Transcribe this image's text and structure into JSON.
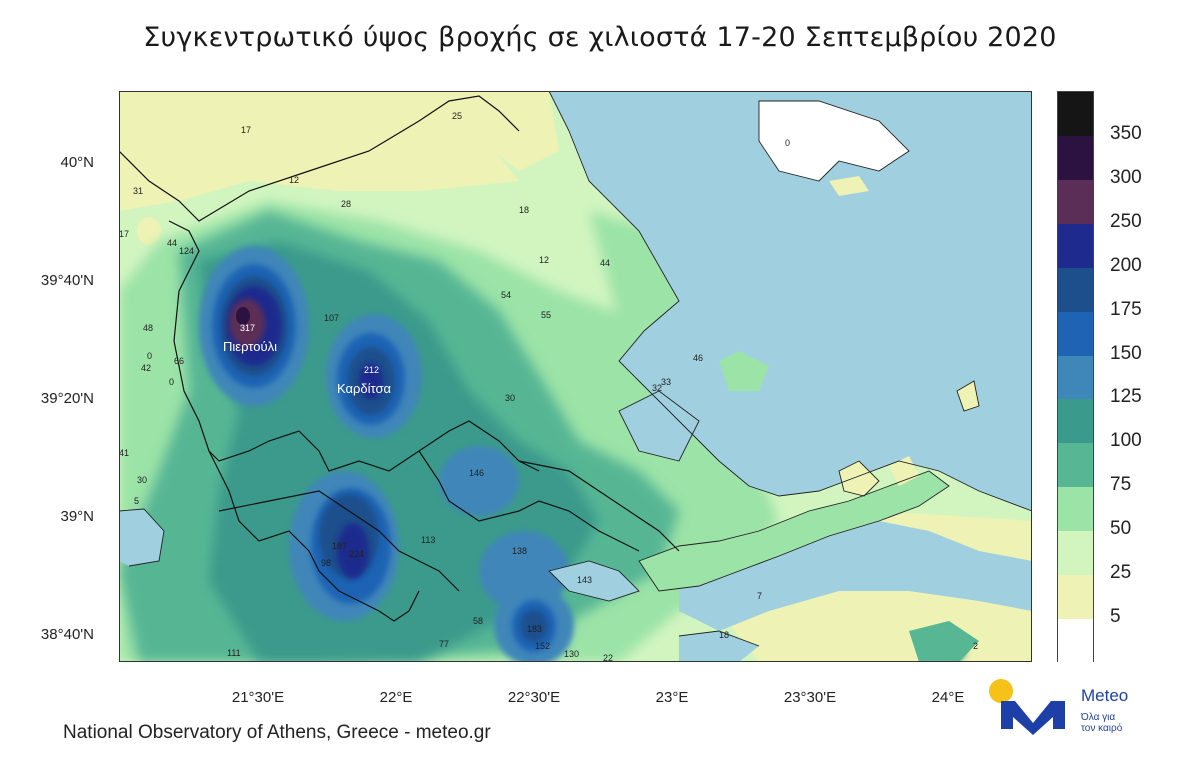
{
  "title": "Συγκεντρωτικό ύψος βροχής σε χιλιοστά 17-20 Σεπτεμβρίου 2020",
  "footer": "National Observatory of Athens, Greece - meteo.gr",
  "logo": {
    "name": "Meteo",
    "slogan_line1": "Όλα για",
    "slogan_line2": "τον καιρό"
  },
  "axes": {
    "y_ticks": [
      "40°N",
      "39°40'N",
      "39°20'N",
      "39°N",
      "38°40'N"
    ],
    "x_ticks": [
      "21°30'E",
      "22°E",
      "22°30'E",
      "23°E",
      "23°30'E",
      "24°E"
    ]
  },
  "colorbar": {
    "levels": [
      "350",
      "300",
      "250",
      "200",
      "175",
      "150",
      "125",
      "100",
      "75",
      "50",
      "25",
      "5"
    ],
    "colors": [
      "#151515",
      "#2b1240",
      "#5b2e57",
      "#1e2a8e",
      "#1c4f8c",
      "#1f64b4",
      "#3f86b9",
      "#3a9a8b",
      "#57b694",
      "#9be3a7",
      "#d2f5c0",
      "#eef2b4",
      "#ffffff"
    ]
  },
  "towns": [
    {
      "name": "Πιερτούλι",
      "value": "317"
    },
    {
      "name": "Καρδίτσα",
      "value": "212"
    }
  ],
  "station_values": [
    "17",
    "12",
    "28",
    "25",
    "18",
    "12",
    "44",
    "54",
    "55",
    "31",
    "17",
    "44",
    "124",
    "48",
    "0",
    "66",
    "42",
    "0",
    "107",
    "46",
    "33",
    "32",
    "30",
    "41",
    "30",
    "5",
    "146",
    "187",
    "224",
    "98",
    "113",
    "138",
    "143",
    "7",
    "58",
    "77",
    "183",
    "152",
    "130",
    "22",
    "111",
    "18",
    "2",
    "0"
  ],
  "sea_color": "#a0cfe0",
  "land_color": "#eef2b4"
}
